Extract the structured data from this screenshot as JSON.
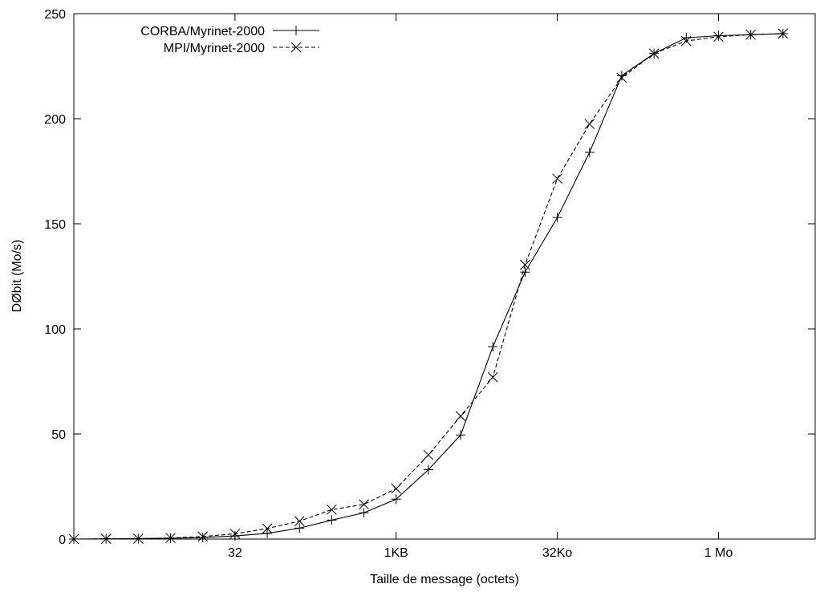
{
  "chart_data": {
    "type": "line",
    "xlabel": "Taille de message (octets)",
    "ylabel": "DØbit (Mo/s)",
    "x_scale": "log2",
    "xlim_log2": [
      0,
      23
    ],
    "ylim": [
      0,
      250
    ],
    "yticks": [
      0,
      50,
      100,
      150,
      200,
      250
    ],
    "xticks": [
      {
        "log2": 5,
        "label": "32"
      },
      {
        "log2": 10,
        "label": "1KB"
      },
      {
        "log2": 15,
        "label": "32Ko"
      },
      {
        "log2": 20,
        "label": "1 Mo"
      }
    ],
    "legend_position": "top-left",
    "grid": false,
    "series": [
      {
        "name": "CORBA/Myrinet-2000",
        "line_style": "solid",
        "marker": "plus",
        "x_log2": [
          0,
          1,
          2,
          3,
          4,
          5,
          6,
          7,
          8,
          9,
          10,
          11,
          12,
          13,
          14,
          15,
          16,
          17,
          18,
          19,
          20,
          21,
          22
        ],
        "values": [
          0.0,
          0.1,
          0.2,
          0.4,
          0.7,
          1.5,
          2.7,
          5.2,
          9.0,
          12.5,
          19.0,
          33.0,
          49.5,
          91.5,
          127.0,
          153.0,
          184.0,
          220.5,
          231.0,
          238.5,
          239.5,
          240.0,
          240.5
        ]
      },
      {
        "name": "MPI/Myrinet-2000",
        "line_style": "dashed",
        "marker": "cross",
        "x_log2": [
          0,
          1,
          2,
          3,
          4,
          5,
          6,
          7,
          8,
          9,
          10,
          11,
          12,
          13,
          14,
          15,
          16,
          17,
          18,
          19,
          20,
          21,
          22
        ],
        "values": [
          0.0,
          0.1,
          0.2,
          0.5,
          1.2,
          2.5,
          5.0,
          8.5,
          14.0,
          16.5,
          24.0,
          40.0,
          58.5,
          77.0,
          130.5,
          171.5,
          197.5,
          219.5,
          231.0,
          237.0,
          239.0,
          240.0,
          240.5
        ]
      }
    ]
  }
}
